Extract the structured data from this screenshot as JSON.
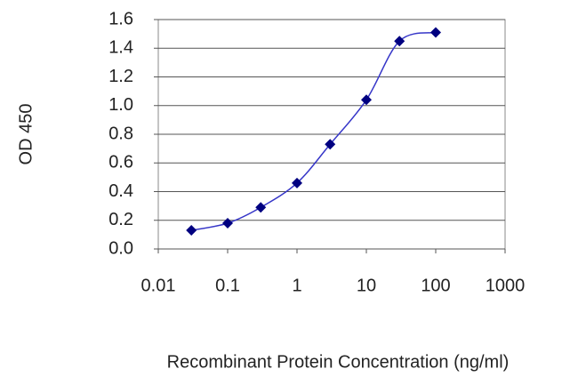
{
  "chart_data": {
    "type": "line",
    "x_label": "Recombinant Protein Concentration (ng/ml)",
    "y_label": "OD 450",
    "x": [
      0.03,
      0.1,
      0.3,
      1,
      3,
      10,
      30,
      100
    ],
    "series": [
      {
        "color": "#3636c8",
        "marker_color": "#000080",
        "values": [
          0.13,
          0.18,
          0.29,
          0.46,
          0.73,
          1.04,
          1.45,
          1.51
        ]
      }
    ],
    "xscale": "log",
    "xlim": [
      0.01,
      1000
    ],
    "xticks": [
      0.01,
      0.1,
      1,
      10,
      100,
      1000
    ],
    "ylim": [
      0,
      1.6
    ],
    "yticks": [
      {
        "value": 0,
        "label": "0.0"
      },
      {
        "value": 0.2,
        "label": "0.2"
      },
      {
        "value": 0.4,
        "label": "0.4"
      },
      {
        "value": 0.6,
        "label": "0.6"
      },
      {
        "value": 0.8,
        "label": "0.8"
      },
      {
        "value": 1.0,
        "label": "1.0"
      },
      {
        "value": 1.2,
        "label": "1.2"
      },
      {
        "value": 1.4,
        "label": "1.4"
      },
      {
        "value": 1.6,
        "label": "1.6"
      }
    ],
    "grid": true
  }
}
